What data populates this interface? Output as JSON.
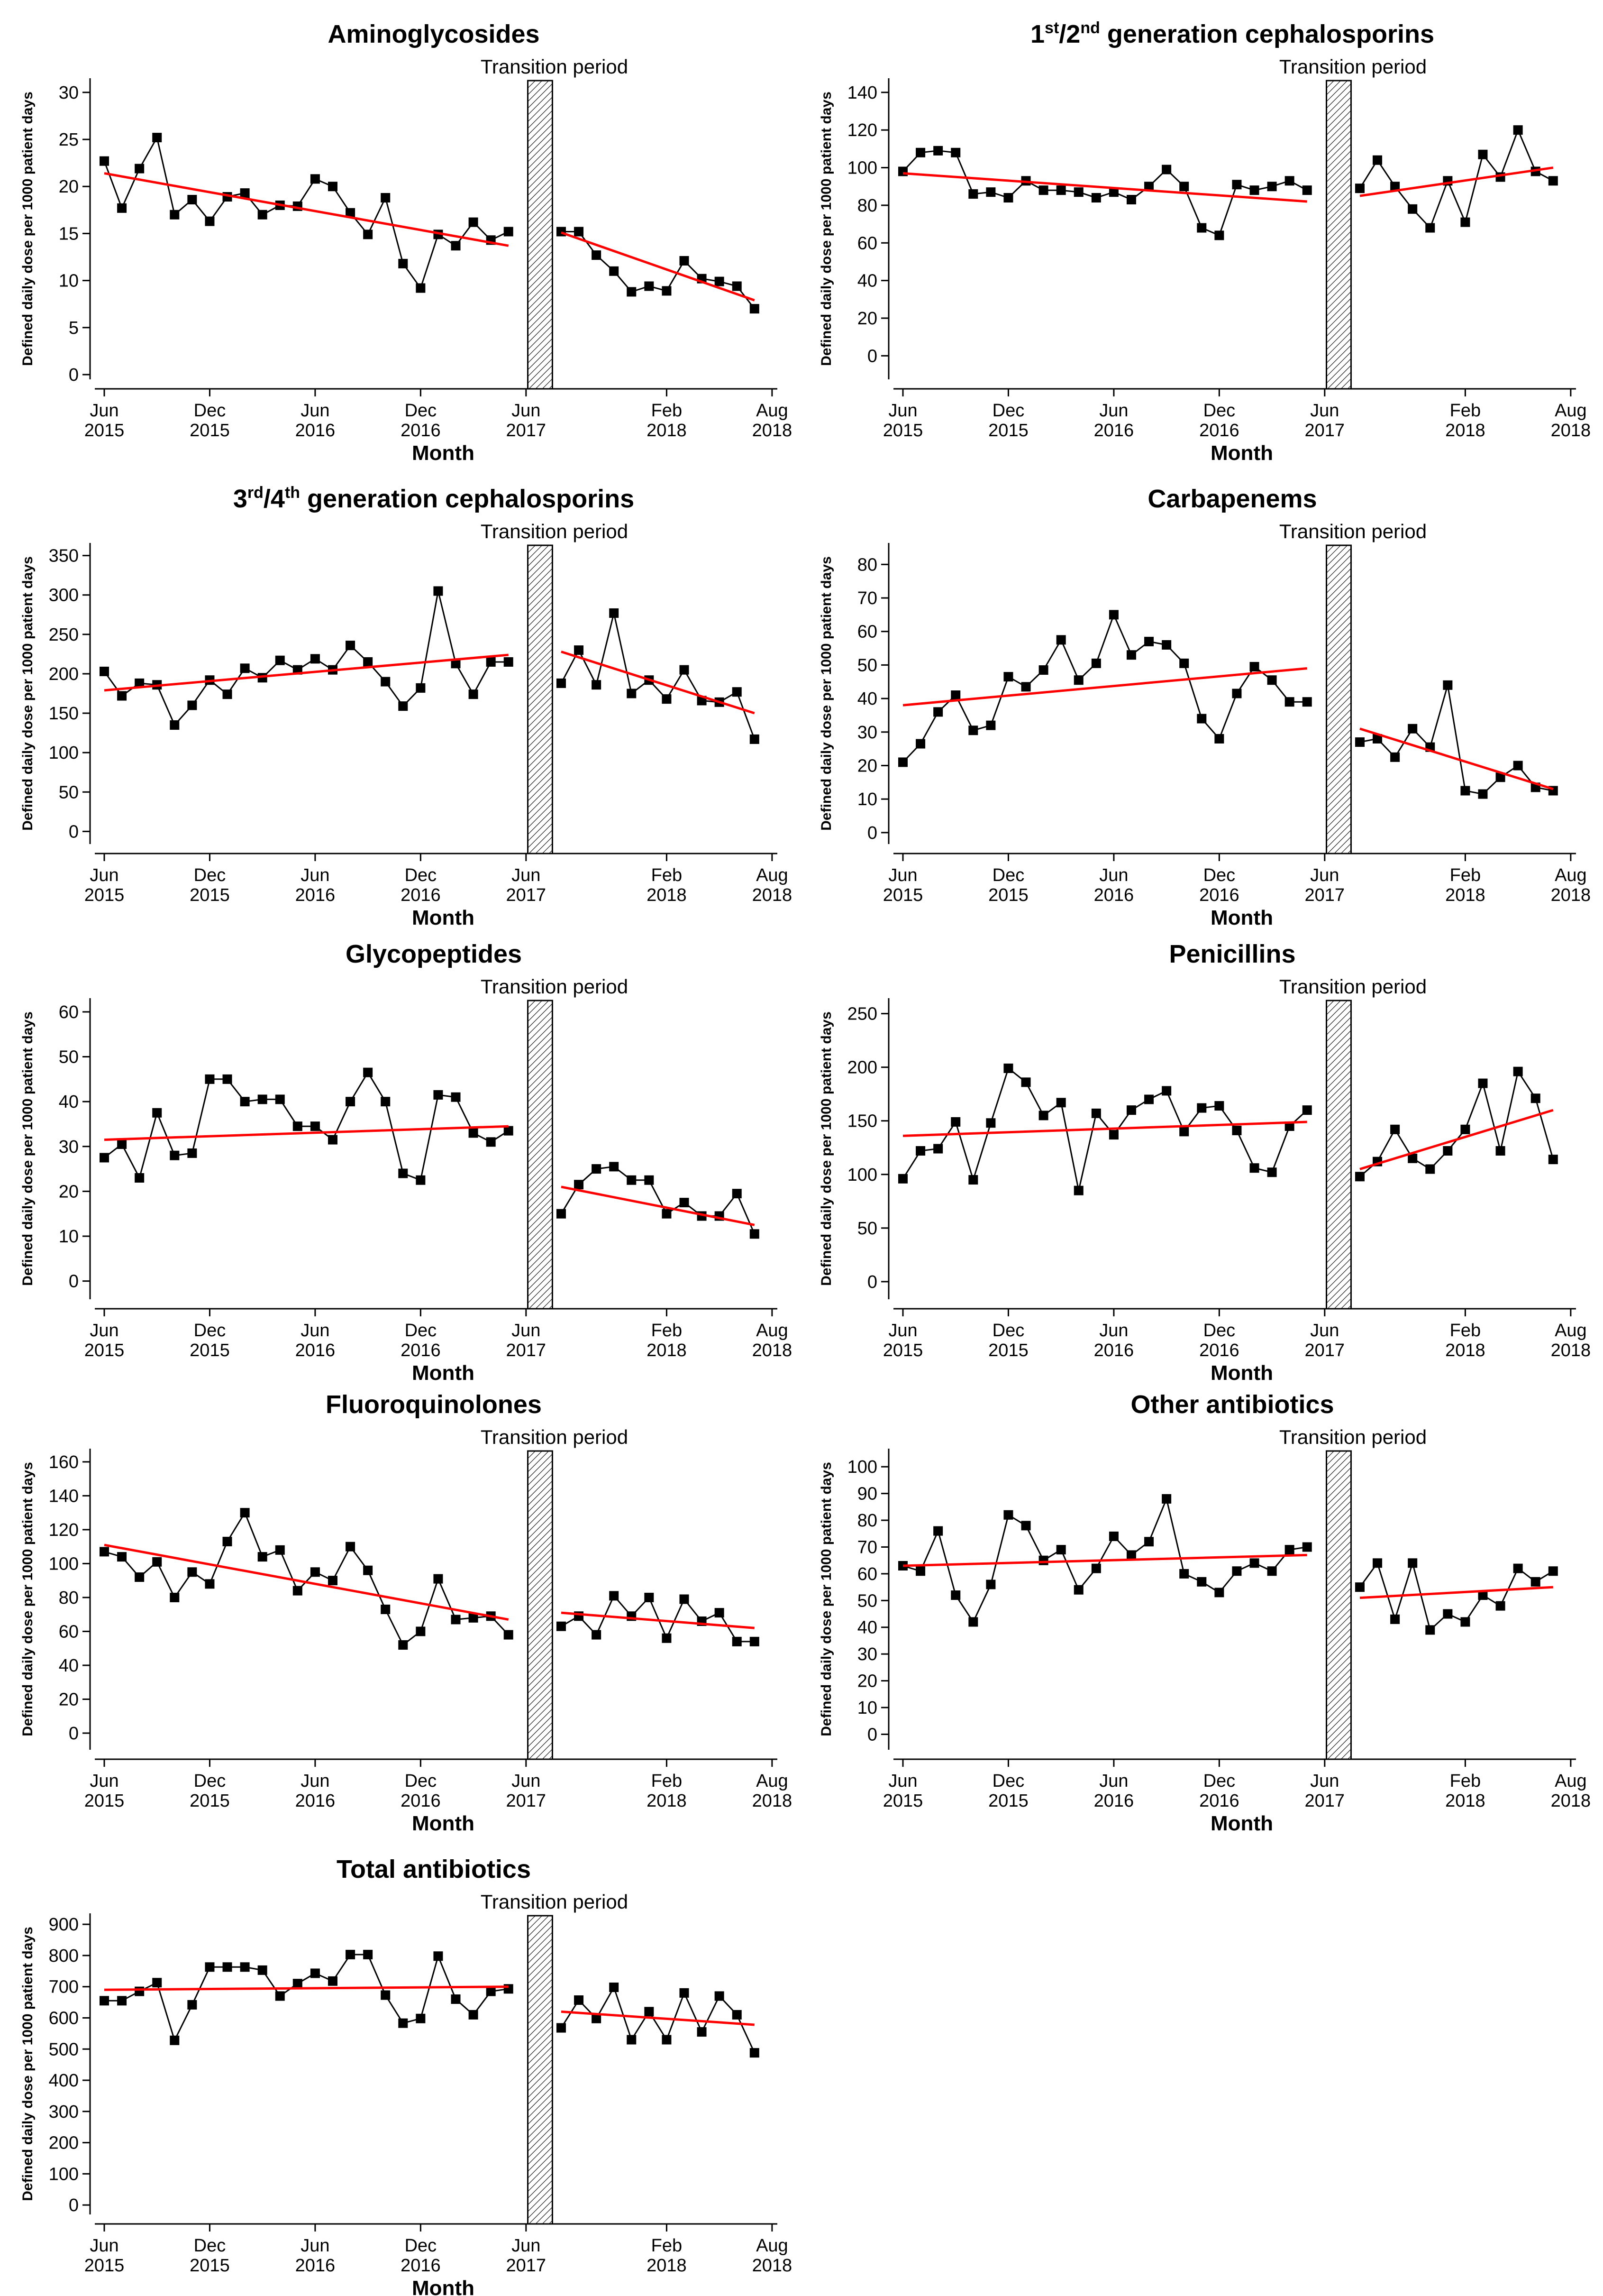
{
  "chart_data": [
    {
      "type": "line",
      "title": [
        "Aminoglycosides"
      ],
      "ylabel": "Defined daily dose per 1000 patient days",
      "xlabel": "Month",
      "transition_label": "Transition period",
      "ylim": [
        0,
        31
      ],
      "yticks": [
        0,
        5,
        10,
        15,
        20,
        25,
        30
      ],
      "xticks": [
        {
          "l1": "Jun",
          "l2": "2015"
        },
        {
          "l1": "Dec",
          "l2": "2015"
        },
        {
          "l1": "Jun",
          "l2": "2016"
        },
        {
          "l1": "Dec",
          "l2": "2016"
        },
        {
          "l1": "Jun",
          "l2": "2017"
        },
        {
          "l1": "Feb",
          "l2": "2018"
        },
        {
          "l1": "Aug",
          "l2": "2018"
        }
      ],
      "series": [
        {
          "values": [
            22.7,
            17.7,
            21.9,
            25.2,
            17.0,
            18.6,
            16.3,
            18.9,
            19.3,
            17.0,
            18.0,
            17.9,
            20.8,
            20.0,
            17.2,
            14.9,
            18.8,
            11.8,
            9.2,
            14.9,
            13.7,
            16.2,
            14.3,
            15.2
          ]
        },
        {
          "values": [
            15.2,
            15.2,
            12.7,
            11.0,
            8.8,
            9.4,
            8.9,
            12.1,
            10.2,
            9.9,
            9.4,
            7.0
          ]
        }
      ],
      "trend_pre": [
        21.4,
        13.7
      ],
      "trend_post": [
        15.1,
        7.9
      ]
    },
    {
      "type": "line",
      "title": [
        "1",
        "st",
        "/2",
        "nd",
        " generation cephalosporins"
      ],
      "ylabel": "Defined daily dose per 1000 patient days",
      "xlabel": "Month",
      "transition_label": "Transition period",
      "ylim": [
        -10,
        145
      ],
      "yticks": [
        0,
        20,
        40,
        60,
        80,
        100,
        120,
        140
      ],
      "xticks": [
        {
          "l1": "Jun",
          "l2": "2015"
        },
        {
          "l1": "Dec",
          "l2": "2015"
        },
        {
          "l1": "Jun",
          "l2": "2016"
        },
        {
          "l1": "Dec",
          "l2": "2016"
        },
        {
          "l1": "Jun",
          "l2": "2017"
        },
        {
          "l1": "Feb",
          "l2": "2018"
        },
        {
          "l1": "Aug",
          "l2": "2018"
        }
      ],
      "series": [
        {
          "values": [
            98,
            108,
            109,
            108,
            86,
            87,
            84,
            93,
            88,
            88,
            87,
            84,
            87,
            83,
            90,
            99,
            90,
            68,
            64,
            91,
            88,
            90,
            93,
            88
          ]
        },
        {
          "values": [
            89,
            104,
            90,
            78,
            68,
            93,
            71,
            107,
            95,
            120,
            98,
            93
          ]
        }
      ],
      "trend_pre": [
        97,
        82
      ],
      "trend_post": [
        85,
        100
      ]
    },
    {
      "type": "line",
      "title": [
        "3",
        "rd",
        "/4",
        "th",
        " generation cephalosporins"
      ],
      "ylabel": "Defined daily dose per 1000 patient days",
      "xlabel": "Month",
      "transition_label": "Transition period",
      "ylim": [
        -10,
        360
      ],
      "yticks": [
        0,
        50,
        100,
        150,
        200,
        250,
        300,
        350
      ],
      "xticks": [
        {
          "l1": "Jun",
          "l2": "2015"
        },
        {
          "l1": "Dec",
          "l2": "2015"
        },
        {
          "l1": "Jun",
          "l2": "2016"
        },
        {
          "l1": "Dec",
          "l2": "2016"
        },
        {
          "l1": "Jun",
          "l2": "2017"
        },
        {
          "l1": "Feb",
          "l2": "2018"
        },
        {
          "l1": "Aug",
          "l2": "2018"
        }
      ],
      "series": [
        {
          "values": [
            203,
            172,
            188,
            186,
            135,
            160,
            192,
            174,
            207,
            195,
            217,
            205,
            219,
            205,
            236,
            215,
            190,
            159,
            182,
            305,
            213,
            174,
            215,
            215
          ]
        },
        {
          "values": [
            188,
            230,
            186,
            277,
            175,
            192,
            168,
            205,
            166,
            164,
            177,
            117
          ]
        }
      ],
      "trend_pre": [
        179,
        224
      ],
      "trend_post": [
        228,
        150
      ]
    },
    {
      "type": "line",
      "title": [
        "Carbapenems"
      ],
      "ylabel": "Defined daily dose per 1000 patient days",
      "xlabel": "Month",
      "transition_label": "Transition period",
      "ylim": [
        -2,
        85
      ],
      "yticks": [
        0,
        10,
        20,
        30,
        40,
        50,
        60,
        70,
        80
      ],
      "xticks": [
        {
          "l1": "Jun",
          "l2": "2015"
        },
        {
          "l1": "Dec",
          "l2": "2015"
        },
        {
          "l1": "Jun",
          "l2": "2016"
        },
        {
          "l1": "Dec",
          "l2": "2016"
        },
        {
          "l1": "Jun",
          "l2": "2017"
        },
        {
          "l1": "Feb",
          "l2": "2018"
        },
        {
          "l1": "Aug",
          "l2": "2018"
        }
      ],
      "series": [
        {
          "values": [
            21,
            26.5,
            36,
            41,
            30.5,
            32,
            46.5,
            43.5,
            48.5,
            57.5,
            45.5,
            50.5,
            65,
            53,
            57,
            56,
            50.5,
            34,
            28,
            41.5,
            49.5,
            45.5,
            39,
            39
          ]
        },
        {
          "values": [
            27,
            28,
            22.5,
            31,
            25.5,
            44,
            12.5,
            11.5,
            16.5,
            20,
            13.5,
            12.5
          ]
        }
      ],
      "trend_pre": [
        38,
        49
      ],
      "trend_post": [
        31,
        13
      ]
    },
    {
      "type": "line",
      "title": [
        "Glycopeptides"
      ],
      "ylabel": "Defined daily dose per 1000 patient days",
      "xlabel": "Month",
      "transition_label": "Transition period",
      "ylim": [
        -3,
        62
      ],
      "yticks": [
        0,
        10,
        20,
        30,
        40,
        50,
        60
      ],
      "xticks": [
        {
          "l1": "Jun",
          "l2": "2015"
        },
        {
          "l1": "Dec",
          "l2": "2015"
        },
        {
          "l1": "Jun",
          "l2": "2016"
        },
        {
          "l1": "Dec",
          "l2": "2016"
        },
        {
          "l1": "Jun",
          "l2": "2017"
        },
        {
          "l1": "Feb",
          "l2": "2018"
        },
        {
          "l1": "Aug",
          "l2": "2018"
        }
      ],
      "series": [
        {
          "values": [
            27.5,
            30.5,
            23,
            37.5,
            28,
            28.5,
            45,
            45,
            40,
            40.5,
            40.5,
            34.5,
            34.5,
            31.5,
            40,
            46.5,
            40,
            24,
            22.5,
            41.5,
            41,
            33,
            31,
            33.5
          ]
        },
        {
          "values": [
            15,
            21.5,
            25,
            25.5,
            22.5,
            22.5,
            15,
            17.5,
            14.5,
            14.5,
            19.5,
            10.5
          ]
        }
      ],
      "trend_pre": [
        31.5,
        34.5
      ],
      "trend_post": [
        21,
        12.5
      ]
    },
    {
      "type": "line",
      "title": [
        "Penicillins"
      ],
      "ylabel": "Defined daily dose per 1000 patient days",
      "xlabel": "Month",
      "transition_label": "Transition period",
      "ylim": [
        -12,
        260
      ],
      "yticks": [
        0,
        50,
        100,
        150,
        200,
        250
      ],
      "xticks": [
        {
          "l1": "Jun",
          "l2": "2015"
        },
        {
          "l1": "Dec",
          "l2": "2015"
        },
        {
          "l1": "Jun",
          "l2": "2016"
        },
        {
          "l1": "Dec",
          "l2": "2016"
        },
        {
          "l1": "Jun",
          "l2": "2017"
        },
        {
          "l1": "Feb",
          "l2": "2018"
        },
        {
          "l1": "Aug",
          "l2": "2018"
        }
      ],
      "series": [
        {
          "values": [
            96,
            122,
            124,
            149,
            95,
            148,
            199,
            186,
            155,
            167,
            85,
            157,
            137,
            160,
            170,
            178,
            140,
            162,
            164,
            141,
            106,
            102,
            145,
            160
          ]
        },
        {
          "values": [
            98,
            112,
            142,
            115,
            105,
            122,
            142,
            185,
            122,
            196,
            171,
            114
          ]
        }
      ],
      "trend_pre": [
        136,
        149
      ],
      "trend_post": [
        105,
        160
      ]
    },
    {
      "type": "line",
      "title": [
        "Fluoroquinolones"
      ],
      "ylabel": "Defined daily dose per 1000 patient days",
      "xlabel": "Month",
      "transition_label": "Transition period",
      "ylim": [
        -7,
        165
      ],
      "yticks": [
        0,
        20,
        40,
        60,
        80,
        100,
        120,
        140,
        160
      ],
      "xticks": [
        {
          "l1": "Jun",
          "l2": "2015"
        },
        {
          "l1": "Dec",
          "l2": "2015"
        },
        {
          "l1": "Jun",
          "l2": "2016"
        },
        {
          "l1": "Dec",
          "l2": "2016"
        },
        {
          "l1": "Jun",
          "l2": "2017"
        },
        {
          "l1": "Feb",
          "l2": "2018"
        },
        {
          "l1": "Aug",
          "l2": "2018"
        }
      ],
      "series": [
        {
          "values": [
            107,
            104,
            92,
            101,
            80,
            95,
            88,
            113,
            130,
            104,
            108,
            84,
            95,
            90,
            110,
            96,
            73,
            52,
            60,
            91,
            67,
            68,
            69,
            58
          ]
        },
        {
          "values": [
            63,
            69,
            58,
            81,
            69,
            80,
            56,
            79,
            66,
            71,
            54,
            54
          ]
        }
      ],
      "trend_pre": [
        111,
        67
      ],
      "trend_post": [
        71,
        62
      ]
    },
    {
      "type": "line",
      "title": [
        "Other antibiotics"
      ],
      "ylabel": "Defined daily dose per 1000 patient days",
      "xlabel": "Month",
      "transition_label": "Transition period",
      "ylim": [
        -4,
        105
      ],
      "yticks": [
        0,
        10,
        20,
        30,
        40,
        50,
        60,
        70,
        80,
        90,
        100
      ],
      "xticks": [
        {
          "l1": "Jun",
          "l2": "2015"
        },
        {
          "l1": "Dec",
          "l2": "2015"
        },
        {
          "l1": "Jun",
          "l2": "2016"
        },
        {
          "l1": "Dec",
          "l2": "2016"
        },
        {
          "l1": "Jun",
          "l2": "2017"
        },
        {
          "l1": "Feb",
          "l2": "2018"
        },
        {
          "l1": "Aug",
          "l2": "2018"
        }
      ],
      "series": [
        {
          "values": [
            63,
            61,
            76,
            52,
            42,
            56,
            82,
            78,
            65,
            69,
            54,
            62,
            74,
            67,
            72,
            88,
            60,
            57,
            53,
            61,
            64,
            61,
            69,
            70
          ]
        },
        {
          "values": [
            55,
            64,
            43,
            64,
            39,
            45,
            42,
            52,
            48,
            62,
            57,
            61
          ]
        }
      ],
      "trend_pre": [
        63,
        67
      ],
      "trend_post": [
        51,
        55
      ]
    },
    {
      "type": "line",
      "title": [
        "Total antibiotics"
      ],
      "ylabel": "Defined daily dose per 1000 patient days",
      "xlabel": "Month",
      "transition_label": "Transition period",
      "ylim": [
        -15,
        920
      ],
      "yticks": [
        0,
        100,
        200,
        300,
        400,
        500,
        600,
        700,
        800,
        900
      ],
      "xticks": [
        {
          "l1": "Jun",
          "l2": "2015"
        },
        {
          "l1": "Dec",
          "l2": "2015"
        },
        {
          "l1": "Jun",
          "l2": "2016"
        },
        {
          "l1": "Dec",
          "l2": "2016"
        },
        {
          "l1": "Jun",
          "l2": "2017"
        },
        {
          "l1": "Feb",
          "l2": "2018"
        },
        {
          "l1": "Aug",
          "l2": "2018"
        }
      ],
      "series": [
        {
          "values": [
            655,
            655,
            685,
            713,
            528,
            642,
            763,
            763,
            763,
            753,
            670,
            710,
            743,
            718,
            803,
            803,
            673,
            583,
            598,
            798,
            660,
            610,
            685,
            693
          ]
        },
        {
          "values": [
            568,
            657,
            598,
            698,
            530,
            620,
            530,
            680,
            555,
            670,
            610,
            488
          ]
        }
      ],
      "trend_pre": [
        690,
        700
      ],
      "trend_post": [
        620,
        578
      ]
    }
  ]
}
